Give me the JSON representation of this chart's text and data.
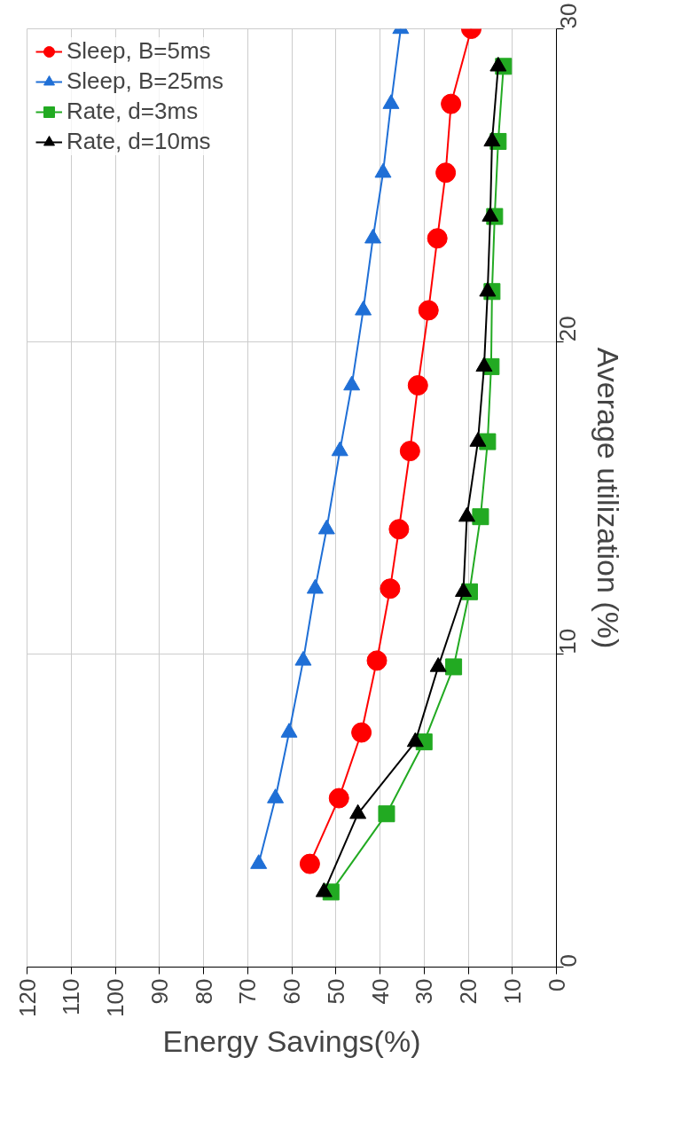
{
  "chart_data": {
    "type": "line",
    "xlabel": "Energy Savings(%)",
    "ylabel": "Average utilization (%)",
    "xlim": [
      120,
      0
    ],
    "xticks": [
      120,
      110,
      100,
      90,
      80,
      70,
      60,
      50,
      40,
      30,
      20,
      10,
      0
    ],
    "ylim": [
      0,
      30
    ],
    "yticks": [
      0,
      10,
      20,
      30
    ],
    "grid": true,
    "legend": "top left",
    "line_style": "solid",
    "series": [
      {
        "name": "Sleep, B=5ms",
        "color": "#ff0000",
        "marker": "circle",
        "values": [
          3.3,
          5.4,
          7.5,
          9.8,
          12.1,
          14.0,
          16.5,
          18.6,
          21.0,
          23.3,
          25.4,
          27.6,
          30.0
        ],
        "x": [
          55.9,
          49.3,
          44.2,
          40.7,
          37.7,
          35.7,
          33.2,
          31.4,
          29.0,
          27.0,
          25.1,
          23.9,
          19.3
        ]
      },
      {
        "name": "Sleep, B=25ms",
        "color": "#1f6fd6",
        "marker": "triangle",
        "values": [
          3.3,
          5.4,
          7.5,
          9.8,
          12.1,
          14.0,
          16.5,
          18.6,
          21.0,
          23.3,
          25.4,
          27.6,
          30.0
        ],
        "x": [
          67.5,
          63.7,
          60.6,
          57.4,
          54.7,
          52.1,
          49.1,
          46.4,
          43.8,
          41.6,
          39.3,
          37.5,
          35.3
        ]
      },
      {
        "name": "Rate, d=3ms",
        "color": "#22aa22",
        "marker": "square",
        "values": [
          2.4,
          4.9,
          7.2,
          9.6,
          12.0,
          14.4,
          16.8,
          19.2,
          21.6,
          24.0,
          26.4,
          28.8
        ],
        "x": [
          51.1,
          38.5,
          30.0,
          23.3,
          19.7,
          17.2,
          15.6,
          14.8,
          14.6,
          14.0,
          13.2,
          12.0
        ]
      },
      {
        "name": "Rate, d=10ms",
        "color": "#000000",
        "marker": "triangle",
        "values": [
          2.4,
          4.9,
          7.2,
          9.6,
          12.0,
          14.4,
          16.8,
          19.2,
          21.6,
          24.0,
          26.4,
          28.8
        ],
        "x": [
          52.7,
          45.0,
          32.0,
          26.8,
          21.1,
          20.3,
          17.8,
          16.4,
          15.6,
          15.0,
          14.6,
          13.2
        ]
      }
    ]
  }
}
